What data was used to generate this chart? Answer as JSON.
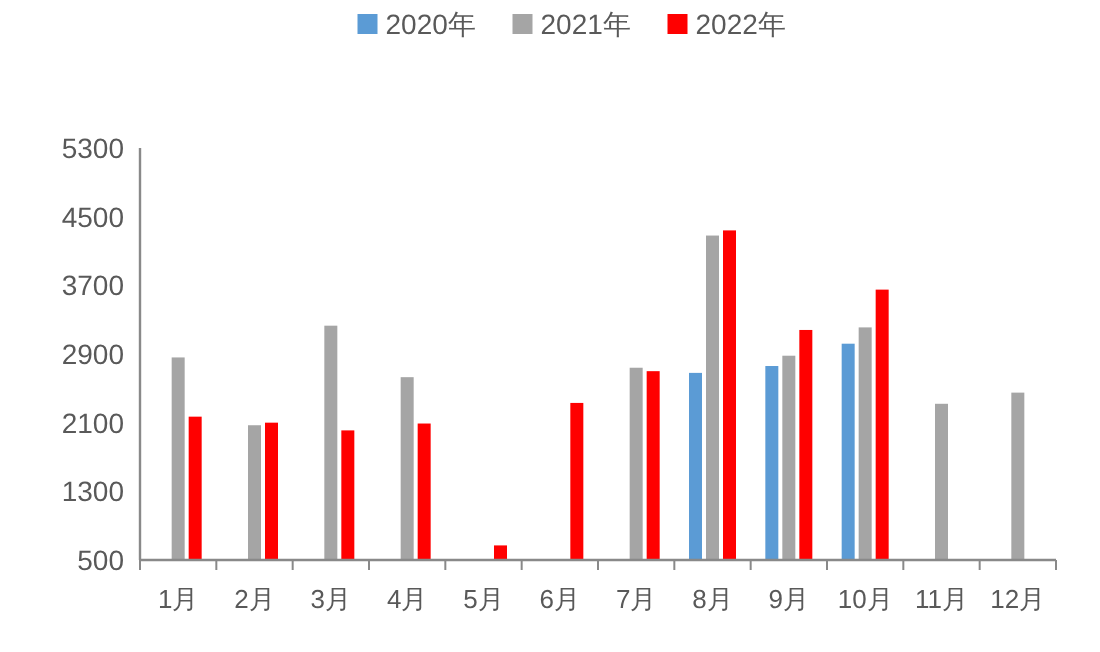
{
  "chart_data": {
    "type": "bar",
    "categories": [
      "1月",
      "2月",
      "3月",
      "4月",
      "5月",
      "6月",
      "7月",
      "8月",
      "9月",
      "10月",
      "11月",
      "12月"
    ],
    "series": [
      {
        "name": "2020年",
        "color": "#5b9bd5",
        "values": [
          null,
          null,
          null,
          null,
          null,
          null,
          null,
          2680,
          2760,
          3020,
          null,
          null
        ]
      },
      {
        "name": "2021年",
        "color": "#a5a5a5",
        "values": [
          2860,
          2070,
          3230,
          2630,
          null,
          null,
          2740,
          4280,
          2880,
          3210,
          2320,
          2450
        ]
      },
      {
        "name": "2022年",
        "color": "#ff0000",
        "values": [
          2170,
          2100,
          2010,
          2090,
          670,
          2330,
          2700,
          4340,
          3180,
          3650,
          null,
          null
        ]
      }
    ],
    "ylim": [
      500,
      5300
    ],
    "yticks": [
      500,
      1300,
      2100,
      2900,
      3700,
      4500,
      5300
    ],
    "grid": false,
    "legend": "top"
  }
}
